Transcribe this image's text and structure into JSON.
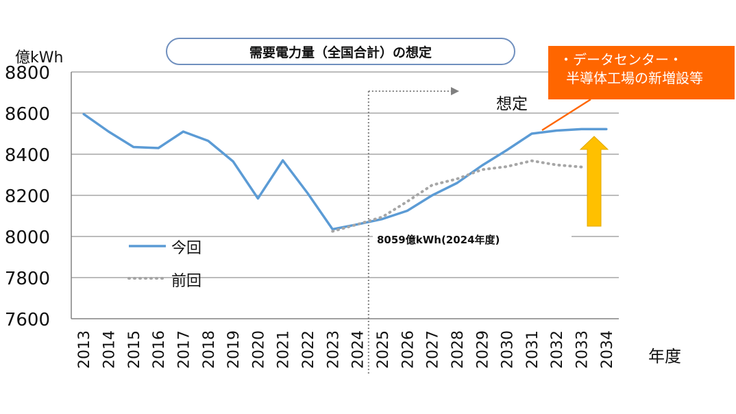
{
  "chart_data": {
    "type": "line",
    "title": "需要電力量（全国合計）の想定",
    "ylabel": "億kWh",
    "xlabel": "年度",
    "ylim": [
      7600,
      8800
    ],
    "yticks": [
      7600,
      7800,
      8000,
      8200,
      8400,
      8600,
      8800
    ],
    "categories": [
      "2013",
      "2014",
      "2015",
      "2016",
      "2017",
      "2018",
      "2019",
      "2020",
      "2021",
      "2022",
      "2023",
      "2024",
      "2025",
      "2026",
      "2027",
      "2028",
      "2029",
      "2030",
      "2031",
      "2032",
      "2033",
      "2034"
    ],
    "series": [
      {
        "name": "今回",
        "color": "#5b9bd5",
        "style": "solid",
        "values": [
          8595,
          8510,
          8435,
          8430,
          8510,
          8465,
          8365,
          8185,
          8370,
          8210,
          8035,
          8059,
          8085,
          8125,
          8200,
          8260,
          8345,
          8420,
          8500,
          8515,
          8522,
          8522
        ]
      },
      {
        "name": "前回",
        "color": "#a6a6a6",
        "style": "dotted",
        "values": [
          null,
          null,
          null,
          null,
          null,
          null,
          null,
          null,
          null,
          null,
          8025,
          8059,
          8095,
          8170,
          8250,
          8280,
          8325,
          8340,
          8368,
          8348,
          8338,
          null
        ]
      }
    ],
    "grid": true,
    "legend_position": "lower-left",
    "annotations": {
      "forecast_label": "想定",
      "callout": "8059億kWh(2024年度)",
      "box_line1": "・データセンター・",
      "box_line2": "半導体工場の新増設等"
    },
    "colors": {
      "annot_box": "#ff6600",
      "arrow": "#ffc000",
      "grid": "#a6a6a6",
      "title_border": "#6f8fbe"
    }
  }
}
